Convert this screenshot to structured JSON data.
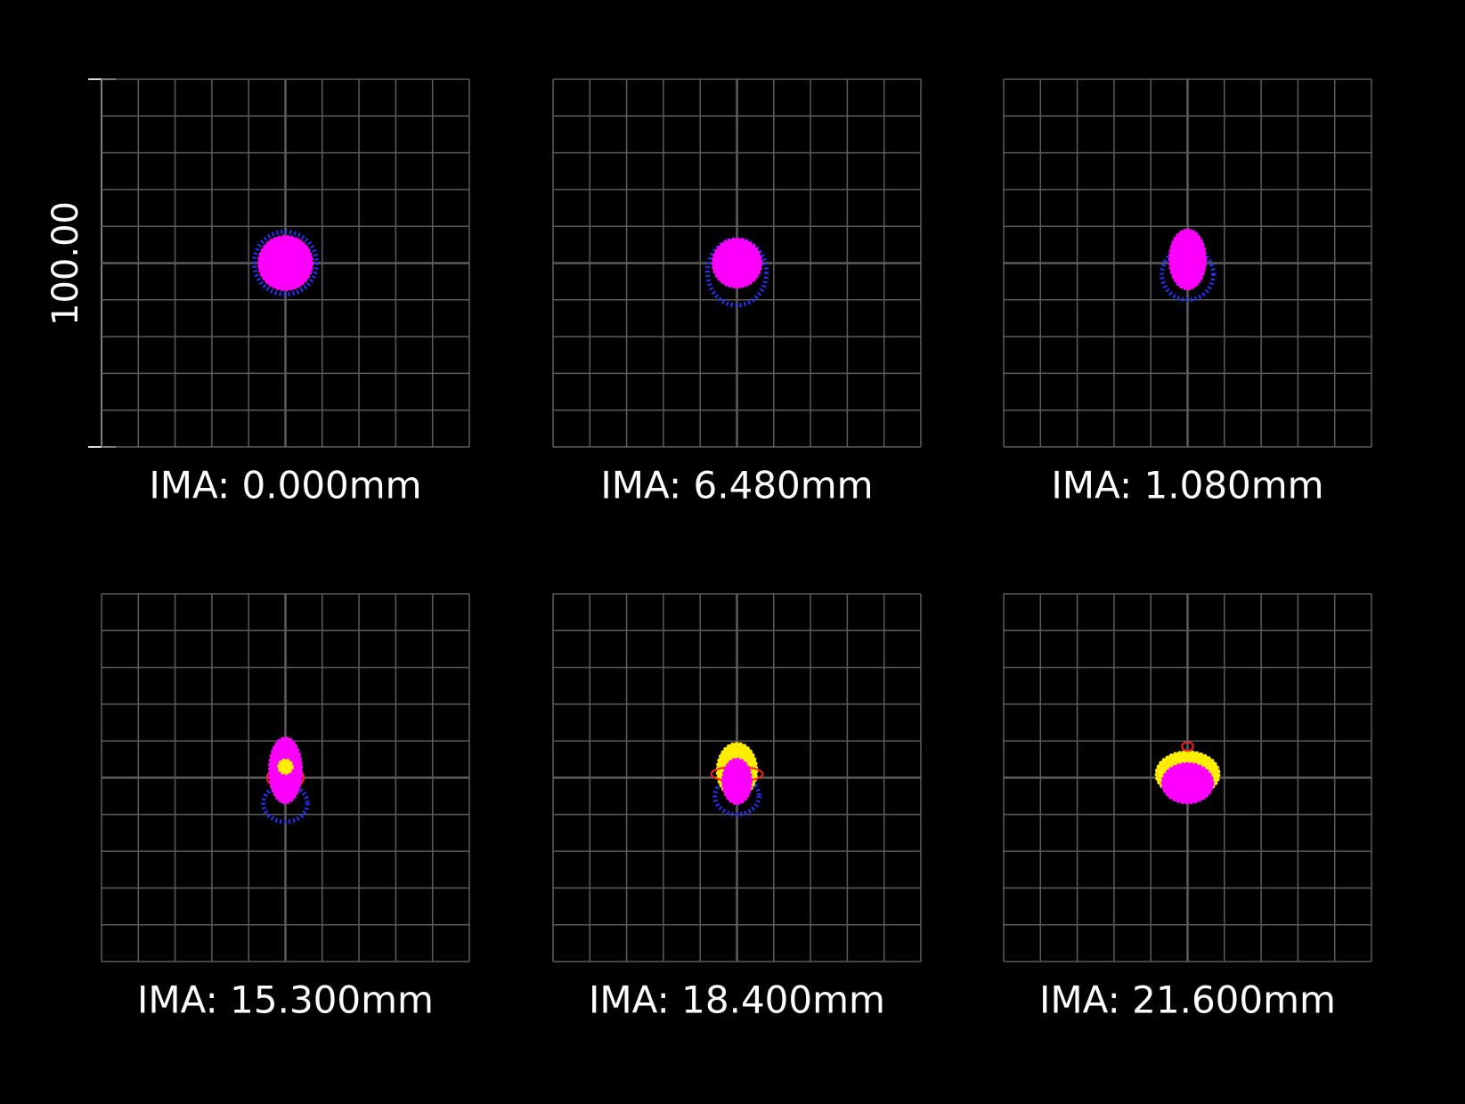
{
  "scale_label": "100.00",
  "panels": [
    {
      "label": "IMA: 0.000mm"
    },
    {
      "label": "IMA: 6.480mm"
    },
    {
      "label": "IMA: 1.080mm"
    },
    {
      "label": "IMA: 15.300mm"
    },
    {
      "label": "IMA: 18.400mm"
    },
    {
      "label": "IMA: 21.600mm"
    }
  ]
}
